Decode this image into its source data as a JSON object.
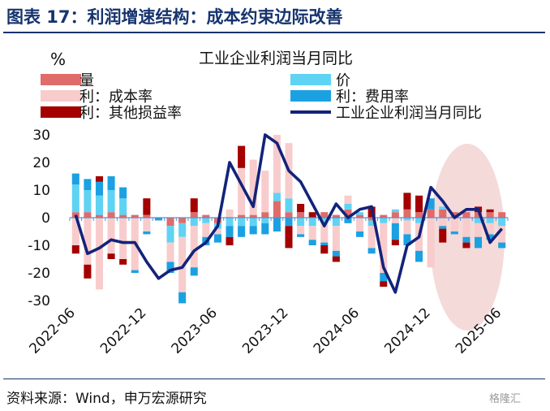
{
  "figure": {
    "title": "图表 17：利润增速结构：成本约束边际改善",
    "source": "资料来源：Wind，申万宏源研究",
    "watermark": "格隆汇"
  },
  "chart_data": {
    "type": "bar",
    "stacked": true,
    "title": "工业企业利润当月同比",
    "ylabel": "%",
    "ylim": [
      -30,
      30
    ],
    "yticks": [
      30,
      20,
      10,
      0,
      -10,
      -20,
      -30
    ],
    "x_tick_labels": [
      "2022-06",
      "2022-12",
      "2023-06",
      "2023-12",
      "2024-06",
      "2024-12",
      "2025-06"
    ],
    "x": [
      "2022-06",
      "2022-07",
      "2022-08",
      "2022-09",
      "2022-10",
      "2022-11",
      "2022-12",
      "2023-01",
      "2023-02",
      "2023-03",
      "2023-04",
      "2023-05",
      "2023-06",
      "2023-07",
      "2023-08",
      "2023-09",
      "2023-10",
      "2023-11",
      "2023-12",
      "2024-01",
      "2024-02",
      "2024-03",
      "2024-04",
      "2024-05",
      "2024-06",
      "2024-07",
      "2024-08",
      "2024-09",
      "2024-10",
      "2024-11",
      "2024-12",
      "2025-01",
      "2025-02",
      "2025-03",
      "2025-04",
      "2025-05",
      "2025-06"
    ],
    "legend_position": "top",
    "highlight": "ellipse over 2025 months",
    "series": [
      {
        "name": "量",
        "color": "#e06b6b",
        "kind": "bar",
        "values": [
          2,
          2,
          1,
          2,
          1,
          1,
          1,
          0,
          -3,
          -2,
          2,
          1,
          -2,
          0,
          1,
          1,
          2,
          6,
          2,
          2,
          0,
          2,
          1,
          3,
          1,
          -1,
          1,
          2,
          3,
          2,
          3,
          3,
          2,
          2,
          2,
          2,
          2
        ]
      },
      {
        "name": "价",
        "color": "#5fd3f3",
        "kind": "bar",
        "values": [
          10,
          8,
          7,
          8,
          6,
          0,
          0,
          0,
          -6,
          -5,
          -3,
          -2,
          -2,
          -3,
          -3,
          -3,
          -2,
          3,
          5,
          -3,
          -3,
          -2,
          -3,
          2,
          1,
          -2,
          -2,
          1,
          -1,
          -2,
          0,
          1,
          0,
          0,
          -2,
          -2,
          -3
        ]
      },
      {
        "name": "利：成本率",
        "color": "#f8cccc",
        "kind": "bar",
        "values": [
          -10,
          -17,
          -26,
          -13,
          -15,
          -19,
          -5,
          0,
          -7,
          -20,
          -15,
          -5,
          -2,
          3,
          17,
          20,
          15,
          21,
          20,
          -3,
          -5,
          -7,
          -9,
          3,
          -5,
          -8,
          -18,
          -2,
          -5,
          -10,
          -18,
          -3,
          -5,
          -7,
          -5,
          -4,
          -6
        ]
      },
      {
        "name": "利：费用率",
        "color": "#1ba1e2",
        "kind": "bar",
        "values": [
          4,
          4,
          5,
          5,
          4,
          -1,
          -1,
          -1,
          -4,
          -4,
          -3,
          -3,
          -3,
          -4,
          -4,
          -3,
          -4,
          -5,
          -3,
          -1,
          -2,
          -1,
          -2,
          -2,
          -2,
          -2,
          -3,
          -6,
          -4,
          -4,
          4,
          -1,
          -1,
          -2,
          -4,
          -2,
          -2
        ]
      },
      {
        "name": "利：其他损益率",
        "color": "#a40000",
        "kind": "bar",
        "values": [
          -3,
          -5,
          2,
          -2,
          -2,
          0,
          6,
          0,
          0,
          0,
          5,
          0,
          0,
          -3,
          8,
          0,
          0,
          0,
          -8,
          3,
          2,
          -3,
          -2,
          0,
          0,
          4,
          -2,
          -2,
          6,
          6,
          0,
          -5,
          0,
          -2,
          2,
          1,
          0
        ]
      },
      {
        "name": "工业企业利润当月同比",
        "color": "#13237a",
        "kind": "line",
        "values": [
          1,
          -13,
          -11,
          -8,
          -9,
          -9,
          -16,
          -22,
          -19,
          -18,
          -12,
          -9,
          -3,
          20,
          12,
          4,
          30,
          27,
          17,
          13,
          5,
          -3,
          5,
          0,
          3,
          4,
          -18,
          -27,
          -10,
          -7,
          11,
          6,
          0,
          3,
          3,
          -9,
          -4
        ]
      }
    ]
  }
}
